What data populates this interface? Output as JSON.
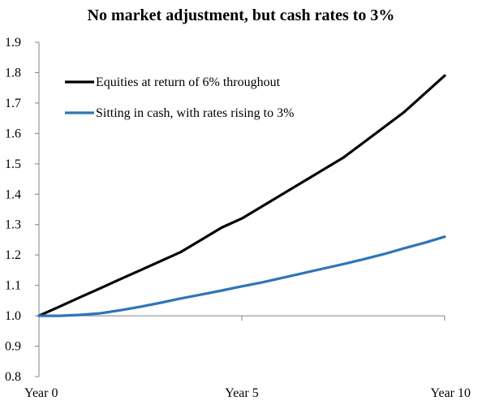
{
  "chart_data": {
    "type": "line",
    "title": "No market adjustment, but cash rates to 3%",
    "xlabel": "",
    "ylabel": "",
    "ylim": [
      0.8,
      1.9
    ],
    "yticks": [
      "0.8",
      "0.9",
      "1.0",
      "1.1",
      "1.2",
      "1.3",
      "1.4",
      "1.5",
      "1.6",
      "1.7",
      "1.8",
      "1.9"
    ],
    "xlim": [
      0,
      10
    ],
    "xticks": [
      {
        "x": 0,
        "label": "Year 0"
      },
      {
        "x": 5,
        "label": "Year 5"
      },
      {
        "x": 10,
        "label": "Year 10"
      }
    ],
    "baseline": 1.0,
    "grid": false,
    "legend_position": "top-left",
    "x": [
      0,
      0.5,
      1,
      1.5,
      2,
      2.5,
      3,
      3.5,
      4,
      4.5,
      5,
      5.5,
      6,
      6.5,
      7,
      7.5,
      8,
      8.5,
      9,
      9.5,
      10
    ],
    "series": [
      {
        "name": "Equities at return of 6% throughout",
        "color": "#000000",
        "values": [
          1.0,
          1.03,
          1.06,
          1.09,
          1.12,
          1.15,
          1.18,
          1.21,
          1.25,
          1.29,
          1.32,
          1.36,
          1.4,
          1.44,
          1.48,
          1.52,
          1.57,
          1.62,
          1.67,
          1.73,
          1.79
        ]
      },
      {
        "name": "Sitting in cash, with rates rising to 3%",
        "color": "#2E75B6",
        "values": [
          1.0,
          1.0,
          1.003,
          1.008,
          1.018,
          1.03,
          1.043,
          1.057,
          1.07,
          1.083,
          1.097,
          1.11,
          1.125,
          1.14,
          1.155,
          1.17,
          1.186,
          1.203,
          1.222,
          1.24,
          1.26
        ]
      }
    ]
  }
}
